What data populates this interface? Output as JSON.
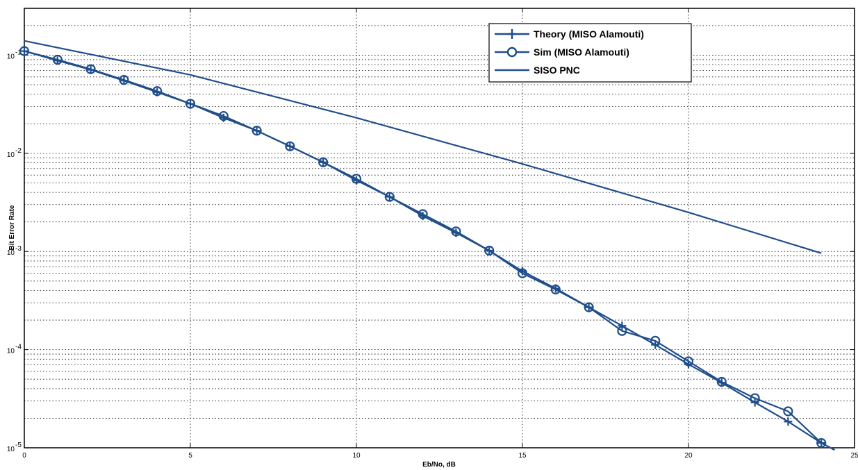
{
  "chart_data": {
    "type": "line",
    "title": "",
    "xlabel": "Eb/No, dB",
    "ylabel": "Bit Error Rate",
    "xlim": [
      0,
      25
    ],
    "ylim": [
      1e-05,
      0.3
    ],
    "yscale": "log",
    "grid": true,
    "legend_position": "top-right",
    "line_color": "#1f4e8c",
    "x_ticks": [
      0,
      5,
      10,
      15,
      20,
      25
    ],
    "y_ticks": [
      {
        "value": 0.1,
        "base": "10",
        "exp": "-1"
      },
      {
        "value": 0.01,
        "base": "10",
        "exp": "-2"
      },
      {
        "value": 0.001,
        "base": "10",
        "exp": "-3"
      },
      {
        "value": 0.0001,
        "base": "10",
        "exp": "-4"
      },
      {
        "value": 1e-05,
        "base": "10",
        "exp": "-5"
      }
    ],
    "series": [
      {
        "name": "Theory (MISO Alamouti)",
        "marker": "plus",
        "x": [
          0,
          1,
          2,
          3,
          4,
          5,
          6,
          7,
          8,
          9,
          10,
          11,
          12,
          13,
          14,
          15,
          16,
          17,
          18,
          19,
          20,
          21,
          22,
          23,
          24,
          24.4
        ],
        "y": [
          0.11,
          0.088,
          0.071,
          0.055,
          0.042,
          0.032,
          0.023,
          0.017,
          0.0118,
          0.0081,
          0.0053,
          0.0036,
          0.0023,
          0.00155,
          0.00102,
          0.00063,
          0.00042,
          0.00027,
          0.000175,
          0.000112,
          7.1e-05,
          4.6e-05,
          2.9e-05,
          1.85e-05,
          1.12e-05,
          9.5e-06
        ]
      },
      {
        "name": "Sim (MISO Alamouti)",
        "marker": "circle",
        "x": [
          0,
          1,
          2,
          3,
          4,
          5,
          6,
          7,
          8,
          9,
          10,
          11,
          12,
          13,
          14,
          15,
          16,
          17,
          18,
          19,
          20,
          21,
          22,
          23,
          24,
          24.4
        ],
        "y": [
          0.11,
          0.09,
          0.072,
          0.056,
          0.043,
          0.032,
          0.024,
          0.017,
          0.0118,
          0.0081,
          0.0055,
          0.0036,
          0.0024,
          0.0016,
          0.00102,
          0.0006,
          0.00041,
          0.00027,
          0.000155,
          0.000123,
          7.6e-05,
          4.7e-05,
          3.2e-05,
          2.35e-05,
          1.12e-05,
          9.5e-06
        ]
      },
      {
        "name": "SISO PNC",
        "marker": "none",
        "x": [
          0,
          5,
          10,
          15,
          20,
          24
        ],
        "y": [
          0.14,
          0.063,
          0.023,
          0.0078,
          0.0025,
          0.00096
        ]
      }
    ]
  }
}
